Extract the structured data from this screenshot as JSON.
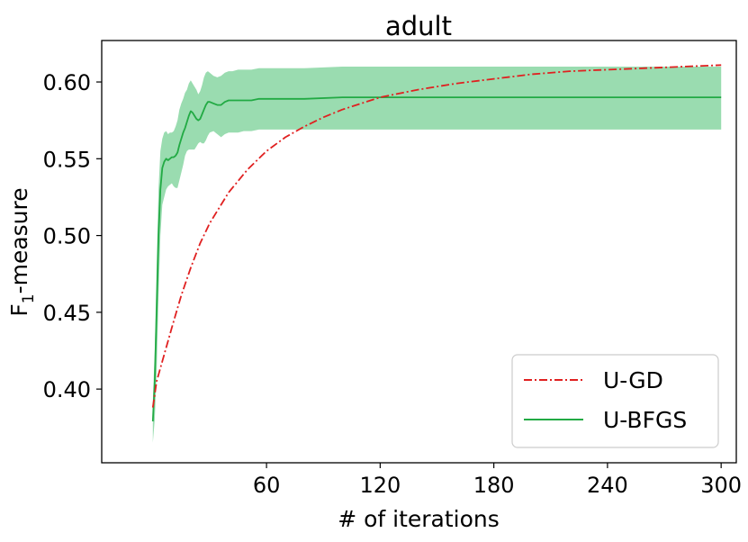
{
  "chart_data": {
    "type": "line",
    "title": "adult",
    "xlabel": "# of iterations",
    "ylabel": {
      "main": "F",
      "sub": "1",
      "rest": "-measure"
    },
    "xlim": [
      -27,
      308
    ],
    "ylim": [
      0.352,
      0.627
    ],
    "xticks": [
      60,
      120,
      180,
      240,
      300
    ],
    "yticks": [
      0.4,
      0.45,
      0.5,
      0.55,
      0.6
    ],
    "ytick_labels": [
      "0.40",
      "0.45",
      "0.50",
      "0.55",
      "0.60"
    ],
    "grid": false,
    "legend_position": "lower-right",
    "series": [
      {
        "name": "U-GD",
        "color": "#e02020",
        "style": "dash-dot",
        "x": [
          0,
          2,
          5,
          10,
          15,
          20,
          25,
          30,
          40,
          50,
          60,
          70,
          80,
          90,
          100,
          110,
          120,
          140,
          160,
          180,
          200,
          220,
          240,
          260,
          280,
          300
        ],
        "y": [
          0.388,
          0.405,
          0.418,
          0.44,
          0.461,
          0.479,
          0.495,
          0.508,
          0.528,
          0.543,
          0.555,
          0.564,
          0.571,
          0.577,
          0.582,
          0.586,
          0.59,
          0.595,
          0.599,
          0.602,
          0.605,
          0.607,
          0.608,
          0.609,
          0.61,
          0.611
        ]
      },
      {
        "name": "U-BFGS",
        "color": "#22aa44",
        "band_color": "#9adcb0",
        "style": "solid",
        "x": [
          0,
          1,
          2,
          3,
          4,
          5,
          6,
          7,
          8,
          9,
          10,
          11,
          12,
          13,
          14,
          15,
          16,
          17,
          18,
          19,
          20,
          21,
          22,
          23,
          24,
          25,
          26,
          27,
          28,
          29,
          30,
          32,
          34,
          36,
          38,
          40,
          42,
          45,
          48,
          52,
          56,
          60,
          70,
          80,
          100,
          120,
          150,
          200,
          250,
          300
        ],
        "y": [
          0.379,
          0.405,
          0.45,
          0.5,
          0.53,
          0.544,
          0.548,
          0.55,
          0.549,
          0.55,
          0.551,
          0.551,
          0.552,
          0.554,
          0.559,
          0.563,
          0.567,
          0.57,
          0.574,
          0.578,
          0.581,
          0.58,
          0.578,
          0.576,
          0.575,
          0.576,
          0.579,
          0.582,
          0.585,
          0.587,
          0.587,
          0.586,
          0.585,
          0.585,
          0.587,
          0.588,
          0.588,
          0.588,
          0.588,
          0.588,
          0.589,
          0.589,
          0.589,
          0.589,
          0.59,
          0.59,
          0.59,
          0.59,
          0.59,
          0.59
        ],
        "lower": [
          0.365,
          0.38,
          0.41,
          0.46,
          0.5,
          0.52,
          0.525,
          0.53,
          0.532,
          0.533,
          0.534,
          0.532,
          0.531,
          0.531,
          0.536,
          0.541,
          0.546,
          0.552,
          0.555,
          0.556,
          0.556,
          0.556,
          0.556,
          0.558,
          0.56,
          0.561,
          0.56,
          0.56,
          0.562,
          0.565,
          0.567,
          0.568,
          0.566,
          0.564,
          0.566,
          0.567,
          0.567,
          0.567,
          0.568,
          0.568,
          0.569,
          0.569,
          0.569,
          0.569,
          0.569,
          0.569,
          0.569,
          0.569,
          0.569,
          0.569
        ],
        "upper": [
          0.392,
          0.425,
          0.48,
          0.53,
          0.555,
          0.563,
          0.567,
          0.568,
          0.566,
          0.567,
          0.567,
          0.568,
          0.571,
          0.575,
          0.582,
          0.586,
          0.589,
          0.593,
          0.595,
          0.599,
          0.601,
          0.599,
          0.597,
          0.595,
          0.592,
          0.594,
          0.598,
          0.603,
          0.606,
          0.607,
          0.606,
          0.604,
          0.603,
          0.604,
          0.606,
          0.607,
          0.607,
          0.608,
          0.608,
          0.608,
          0.609,
          0.609,
          0.609,
          0.609,
          0.61,
          0.61,
          0.61,
          0.61,
          0.61,
          0.61
        ]
      }
    ]
  }
}
